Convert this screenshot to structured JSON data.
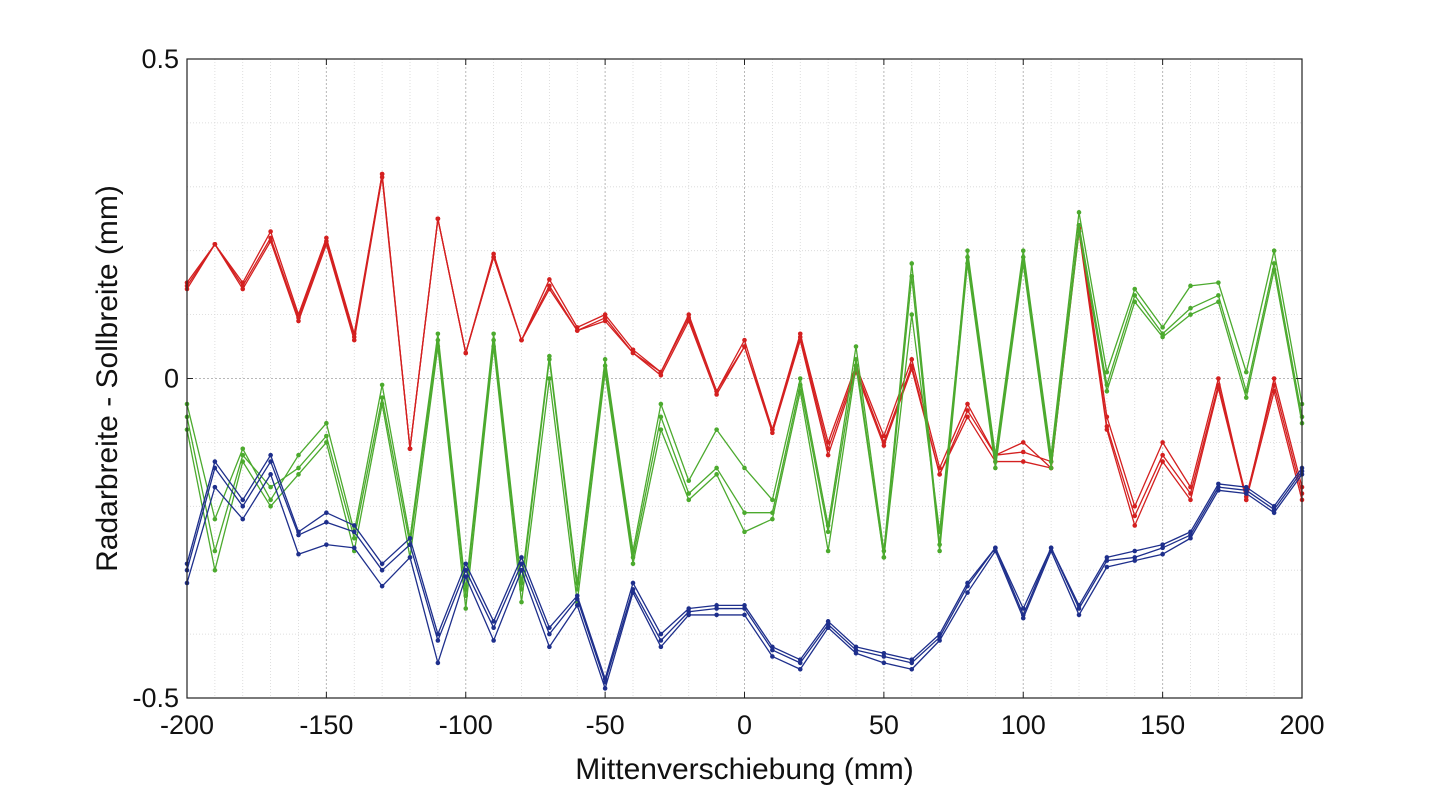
{
  "chart_data": {
    "type": "line",
    "title": "",
    "xlabel": "Mittenverschiebung (mm)",
    "ylabel": "Radarbreite - Sollbreite (mm)",
    "xlim": [
      -200,
      200
    ],
    "ylim": [
      -0.5,
      0.5
    ],
    "xticks": [
      -200,
      -150,
      -100,
      -50,
      0,
      50,
      100,
      150,
      200
    ],
    "yticks": [
      -0.5,
      0,
      0.5
    ],
    "ytick_labels": [
      "-0.5",
      "0",
      "0.5"
    ],
    "grid": true,
    "legend": "none",
    "x": [
      -200,
      -190,
      -180,
      -170,
      -160,
      -150,
      -140,
      -130,
      -120,
      -110,
      -100,
      -90,
      -80,
      -70,
      -60,
      -50,
      -40,
      -30,
      -20,
      -10,
      0,
      10,
      20,
      30,
      40,
      50,
      60,
      70,
      80,
      90,
      100,
      110,
      120,
      130,
      140,
      150,
      160,
      170,
      180,
      190,
      200
    ],
    "series": [
      {
        "color": "#d42020",
        "values": [
          0.15,
          0.21,
          0.15,
          0.23,
          0.1,
          0.22,
          0.07,
          0.32,
          -0.11,
          0.25,
          0.04,
          0.195,
          0.06,
          0.155,
          0.08,
          0.1,
          0.045,
          0.01,
          0.1,
          -0.02,
          0.06,
          -0.08,
          0.07,
          -0.1,
          0.02,
          -0.09,
          0.03,
          -0.14,
          -0.04,
          -0.12,
          -0.1,
          -0.14,
          0.24,
          -0.06,
          -0.2,
          -0.1,
          -0.17,
          0.0,
          -0.19,
          0.0,
          -0.17
        ]
      },
      {
        "color": "#d42020",
        "values": [
          0.145,
          0.21,
          0.145,
          0.22,
          0.095,
          0.215,
          0.065,
          0.32,
          -0.11,
          0.25,
          0.04,
          0.19,
          0.06,
          0.145,
          0.075,
          0.095,
          0.04,
          0.01,
          0.095,
          -0.02,
          0.05,
          -0.08,
          0.065,
          -0.11,
          0.015,
          -0.1,
          0.02,
          -0.15,
          -0.05,
          -0.12,
          -0.115,
          -0.13,
          0.235,
          -0.075,
          -0.215,
          -0.12,
          -0.18,
          -0.01,
          -0.185,
          -0.01,
          -0.18
        ]
      },
      {
        "color": "#d42020",
        "values": [
          0.14,
          0.21,
          0.14,
          0.215,
          0.09,
          0.21,
          0.06,
          0.315,
          -0.11,
          0.25,
          0.04,
          0.19,
          0.06,
          0.14,
          0.075,
          0.09,
          0.04,
          0.005,
          0.09,
          -0.025,
          0.05,
          -0.085,
          0.06,
          -0.12,
          0.01,
          -0.105,
          0.015,
          -0.15,
          -0.06,
          -0.13,
          -0.13,
          -0.14,
          0.23,
          -0.08,
          -0.23,
          -0.13,
          -0.19,
          -0.015,
          -0.19,
          -0.02,
          -0.19
        ]
      },
      {
        "color": "#4caa2e",
        "values": [
          -0.04,
          -0.22,
          -0.11,
          -0.19,
          -0.12,
          -0.07,
          -0.24,
          -0.01,
          -0.25,
          0.07,
          -0.33,
          0.07,
          -0.32,
          0.035,
          -0.32,
          0.03,
          -0.27,
          -0.04,
          -0.16,
          -0.08,
          -0.14,
          -0.19,
          0.0,
          -0.23,
          0.05,
          -0.27,
          0.18,
          -0.26,
          0.2,
          -0.12,
          0.2,
          -0.12,
          0.26,
          0.01,
          0.14,
          0.08,
          0.145,
          0.15,
          0.01,
          0.2,
          -0.04
        ]
      },
      {
        "color": "#4caa2e",
        "values": [
          -0.06,
          -0.27,
          -0.12,
          -0.17,
          -0.14,
          -0.09,
          -0.25,
          -0.03,
          -0.26,
          0.06,
          -0.34,
          0.06,
          -0.33,
          0.03,
          -0.33,
          0.02,
          -0.28,
          -0.06,
          -0.18,
          -0.14,
          -0.21,
          -0.21,
          -0.01,
          -0.24,
          0.03,
          -0.28,
          0.1,
          -0.24,
          0.19,
          -0.13,
          0.19,
          -0.13,
          0.24,
          -0.01,
          0.13,
          0.07,
          0.11,
          0.13,
          -0.02,
          0.18,
          -0.06
        ]
      },
      {
        "color": "#4caa2e",
        "values": [
          -0.08,
          -0.3,
          -0.13,
          -0.2,
          -0.15,
          -0.1,
          -0.27,
          -0.04,
          -0.28,
          0.05,
          -0.36,
          0.05,
          -0.35,
          0.0,
          -0.35,
          0.01,
          -0.29,
          -0.08,
          -0.19,
          -0.15,
          -0.24,
          -0.22,
          -0.02,
          -0.27,
          0.02,
          -0.28,
          0.16,
          -0.27,
          0.18,
          -0.14,
          0.18,
          -0.14,
          0.23,
          -0.02,
          0.12,
          0.065,
          0.1,
          0.12,
          -0.03,
          0.17,
          -0.07
        ]
      },
      {
        "color": "#1e2f8c",
        "values": [
          -0.29,
          -0.13,
          -0.19,
          -0.12,
          -0.24,
          -0.21,
          -0.23,
          -0.29,
          -0.25,
          -0.4,
          -0.29,
          -0.38,
          -0.28,
          -0.39,
          -0.34,
          -0.47,
          -0.32,
          -0.4,
          -0.36,
          -0.355,
          -0.355,
          -0.42,
          -0.44,
          -0.38,
          -0.42,
          -0.43,
          -0.44,
          -0.4,
          -0.32,
          -0.265,
          -0.36,
          -0.265,
          -0.355,
          -0.28,
          -0.27,
          -0.26,
          -0.24,
          -0.165,
          -0.17,
          -0.2,
          -0.14
        ]
      },
      {
        "color": "#1e2f8c",
        "values": [
          -0.3,
          -0.14,
          -0.2,
          -0.13,
          -0.245,
          -0.225,
          -0.24,
          -0.3,
          -0.26,
          -0.41,
          -0.3,
          -0.39,
          -0.29,
          -0.4,
          -0.345,
          -0.475,
          -0.33,
          -0.41,
          -0.365,
          -0.36,
          -0.36,
          -0.425,
          -0.445,
          -0.385,
          -0.425,
          -0.435,
          -0.445,
          -0.405,
          -0.325,
          -0.265,
          -0.37,
          -0.265,
          -0.36,
          -0.285,
          -0.28,
          -0.265,
          -0.245,
          -0.17,
          -0.175,
          -0.205,
          -0.145
        ]
      },
      {
        "color": "#1e2f8c",
        "values": [
          -0.32,
          -0.17,
          -0.22,
          -0.15,
          -0.275,
          -0.26,
          -0.265,
          -0.325,
          -0.28,
          -0.445,
          -0.31,
          -0.41,
          -0.3,
          -0.42,
          -0.355,
          -0.485,
          -0.335,
          -0.42,
          -0.37,
          -0.37,
          -0.37,
          -0.435,
          -0.455,
          -0.39,
          -0.43,
          -0.445,
          -0.455,
          -0.41,
          -0.335,
          -0.27,
          -0.375,
          -0.27,
          -0.37,
          -0.295,
          -0.285,
          -0.275,
          -0.25,
          -0.175,
          -0.18,
          -0.21,
          -0.15
        ]
      }
    ]
  }
}
